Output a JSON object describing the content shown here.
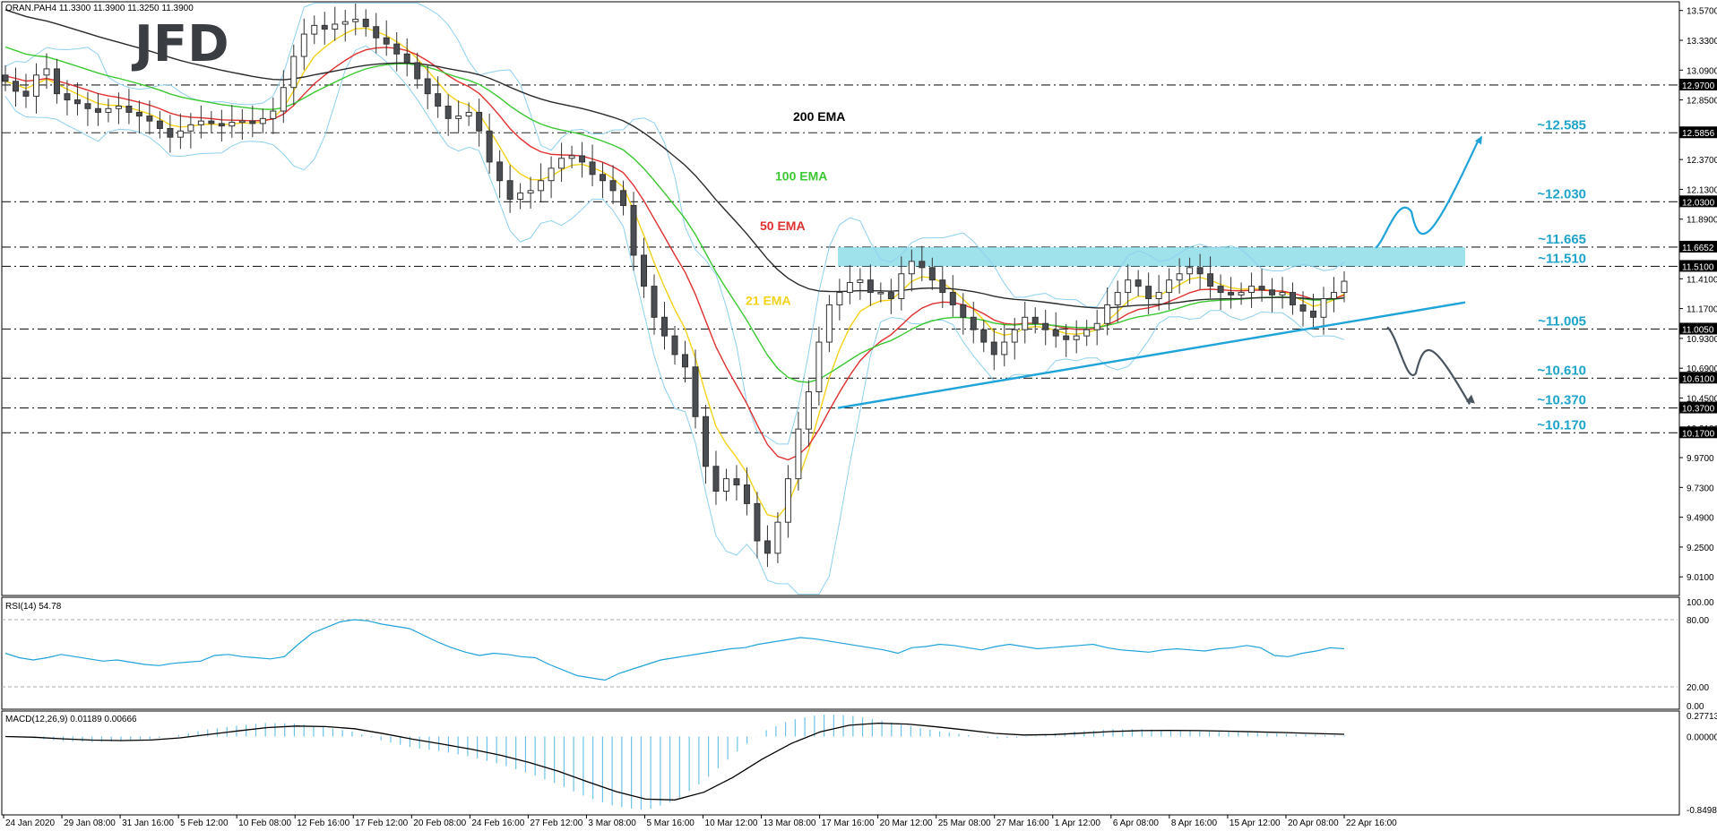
{
  "chart_data": {
    "type": "candlestick",
    "instrument_label": "ORAN.PAH4  11.3300 11.3900 11.3250 11.3900",
    "logo": "JFD",
    "colors": {
      "up": "#ffffff",
      "down": "#4a4d52",
      "ema21": "#f5d21a",
      "ema50": "#e03030",
      "ema100": "#3cc832",
      "ema200": "#2a2a2a",
      "bollinger": "#8fd0ee",
      "trend": "#1fa3d8",
      "zone": "#7fd8e6",
      "arrow_up": "#1fa3d8",
      "arrow_down": "#4a5560"
    },
    "y_axis_ticks": [
      "13.5700",
      "13.3300",
      "13.0900",
      "12.8500",
      "12.6100",
      "12.3700",
      "12.1300",
      "11.8900",
      "11.6500",
      "11.4100",
      "11.1700",
      "10.9300",
      "10.6900",
      "10.4500",
      "10.2100",
      "9.9700",
      "9.7300",
      "9.4900",
      "9.2500",
      "9.0100"
    ],
    "ylim": [
      8.86,
      13.64
    ],
    "x_axis_ticks": [
      "24 Jan 2020",
      "29 Jan 08:00",
      "31 Jan 16:00",
      "5 Feb 12:00",
      "10 Feb 08:00",
      "12 Feb 16:00",
      "17 Feb 12:00",
      "20 Feb 08:00",
      "24 Feb 16:00",
      "27 Feb 12:00",
      "3 Mar 08:00",
      "5 Mar 16:00",
      "10 Mar 12:00",
      "13 Mar 08:00",
      "17 Mar 16:00",
      "20 Mar 12:00",
      "25 Mar 08:00",
      "27 Mar 16:00",
      "1 Apr 12:00",
      "6 Apr 08:00",
      "8 Apr 16:00",
      "15 Apr 12:00",
      "20 Apr 08:00",
      "22 Apr 16:00"
    ],
    "price_boxes": [
      "12.9700",
      "12.5856",
      "12.0300",
      "11.6652",
      "11.5100",
      "11.0050",
      "10.6100",
      "10.3700",
      "10.1700"
    ],
    "levels": [
      {
        "label": "~12.585",
        "value": 12.585
      },
      {
        "label": "~12.030",
        "value": 12.03
      },
      {
        "label": "~11.665",
        "value": 11.665
      },
      {
        "label": "~11.510",
        "value": 11.51
      },
      {
        "label": "~11.005",
        "value": 11.005
      },
      {
        "label": "~10.610",
        "value": 10.61
      },
      {
        "label": "~10.370",
        "value": 10.37
      },
      {
        "label": "~10.170",
        "value": 10.17
      }
    ],
    "ema_labels": [
      {
        "text": "200 EMA",
        "color": "#000000"
      },
      {
        "text": "100 EMA",
        "color": "#3cc832"
      },
      {
        "text": "50 EMA",
        "color": "#e03030"
      },
      {
        "text": "21 EMA",
        "color": "#f5d21a"
      }
    ],
    "rsi": {
      "label": "RSI(14) 54.78",
      "ticks": [
        "100.00",
        "80.00",
        "20.00",
        "0.00"
      ]
    },
    "macd": {
      "label": "MACD(12,26,9) 0.01189 0.00666",
      "ticks": [
        "0.27713",
        "0.00000",
        "-0.84985"
      ]
    },
    "closes": [
      13.0,
      12.92,
      12.88,
      13.05,
      13.1,
      12.9,
      12.85,
      12.82,
      12.78,
      12.75,
      12.78,
      12.8,
      12.75,
      12.72,
      12.68,
      12.62,
      12.55,
      12.6,
      12.65,
      12.68,
      12.66,
      12.64,
      12.67,
      12.68,
      12.66,
      12.7,
      12.76,
      12.95,
      13.2,
      13.38,
      13.45,
      13.42,
      13.46,
      13.48,
      13.5,
      13.44,
      13.35,
      13.3,
      13.22,
      13.15,
      13.02,
      12.9,
      12.8,
      12.7,
      12.72,
      12.75,
      12.6,
      12.35,
      12.2,
      12.05,
      12.1,
      12.12,
      12.2,
      12.3,
      12.38,
      12.4,
      12.35,
      12.25,
      12.2,
      12.12,
      12.0,
      11.6,
      11.35,
      11.1,
      10.95,
      10.8,
      10.7,
      10.3,
      9.9,
      9.7,
      9.8,
      9.75,
      9.6,
      9.3,
      9.2,
      9.45,
      9.8,
      10.2,
      10.5,
      10.9,
      11.2,
      11.3,
      11.38,
      11.4,
      11.3,
      11.3,
      11.25,
      11.45,
      11.55,
      11.5,
      11.4,
      11.3,
      11.2,
      11.1,
      11.0,
      10.9,
      10.8,
      10.9,
      11.0,
      11.1,
      11.05,
      11.0,
      10.95,
      10.92,
      10.95,
      11.0,
      11.05,
      11.2,
      11.3,
      11.4,
      11.35,
      11.25,
      11.3,
      11.4,
      11.45,
      11.5,
      11.45,
      11.35,
      11.3,
      11.28,
      11.3,
      11.35,
      11.32,
      11.28,
      11.3,
      11.2,
      11.15,
      11.1,
      11.25,
      11.3,
      11.39
    ],
    "rsi_values": [
      50,
      46,
      44,
      46,
      49,
      47,
      45,
      43,
      44,
      42,
      40,
      39,
      41,
      42,
      43,
      48,
      49,
      47,
      46,
      45,
      47,
      58,
      68,
      73,
      78,
      80,
      79,
      76,
      74,
      72,
      66,
      60,
      55,
      51,
      48,
      50,
      49,
      47,
      46,
      40,
      35,
      30,
      28,
      26,
      32,
      36,
      40,
      44,
      46,
      48,
      50,
      52,
      54,
      55,
      58,
      60,
      62,
      64,
      63,
      61,
      59,
      57,
      55,
      53,
      50,
      55,
      56,
      58,
      57,
      55,
      53,
      56,
      58,
      56,
      54,
      55,
      56,
      57,
      58,
      55,
      53,
      52,
      51,
      53,
      54,
      53,
      52,
      54,
      55,
      57,
      55,
      48,
      47,
      50,
      52,
      55,
      54
    ],
    "macd_values": [
      0.0,
      -0.02,
      -0.05,
      -0.06,
      -0.05,
      -0.03,
      0.02,
      0.08,
      0.12,
      0.15,
      0.14,
      0.1,
      0.05,
      -0.05,
      -0.12,
      -0.16,
      -0.22,
      -0.3,
      -0.4,
      -0.52,
      -0.66,
      -0.76,
      -0.8,
      -0.7,
      -0.48,
      -0.2,
      0.05,
      0.18,
      0.24,
      0.23,
      0.18,
      0.12,
      0.06,
      0.02,
      -0.02,
      -0.01,
      0.03,
      0.06,
      0.08,
      0.08,
      0.07,
      0.06,
      0.05,
      0.04,
      0.03,
      0.02,
      0.01
    ]
  }
}
